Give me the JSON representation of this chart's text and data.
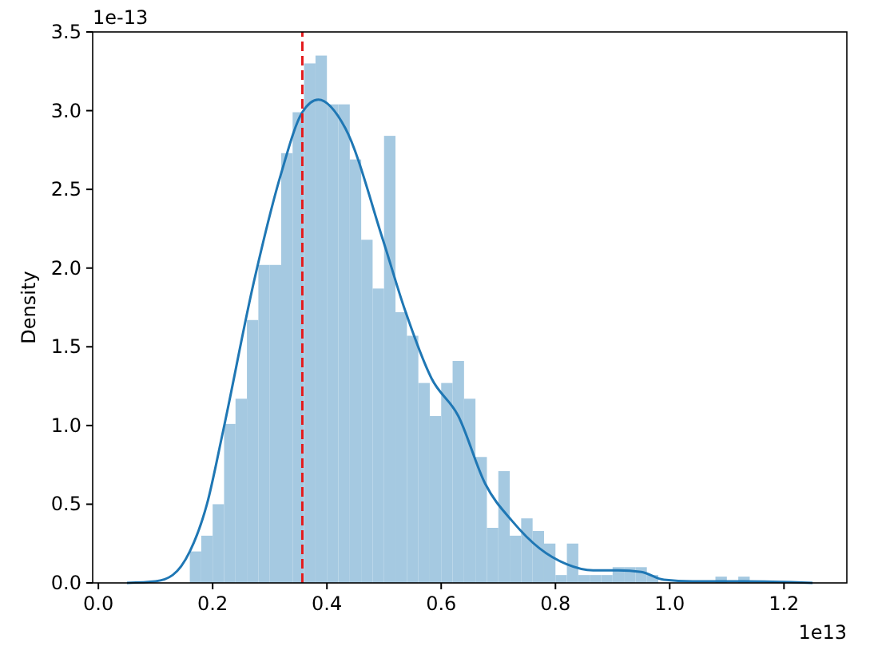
{
  "chart_data": {
    "type": "histogram",
    "ylabel": "Density",
    "xlim": [
      -0.01,
      1.31
    ],
    "ylim": [
      0,
      3.5
    ],
    "xticks": [
      {
        "value": 0,
        "label": "0.0"
      },
      0.2,
      0.4,
      0.6,
      0.8,
      {
        "value": 1,
        "label": "1.0"
      },
      1.2
    ],
    "yticks": [
      {
        "value": 0,
        "label": "0.0"
      },
      0.5,
      {
        "value": 1,
        "label": "1.0"
      },
      1.5,
      {
        "value": 2,
        "label": "2.0"
      },
      2.5,
      {
        "value": 3,
        "label": "3.0"
      },
      3.5
    ],
    "annotations": [
      "1e-13",
      "1e13"
    ],
    "ref_lines": [
      {
        "axis": "x",
        "value": 0.357,
        "color": "#e31a1c",
        "line_style": "dashed"
      }
    ],
    "color": "#a5c9e1",
    "bins": [
      0.16,
      0.18,
      0.2,
      0.22,
      0.24,
      0.26,
      0.28,
      0.3,
      0.32,
      0.34,
      0.36,
      0.38,
      0.4,
      0.42,
      0.44,
      0.46,
      0.48,
      0.5,
      0.52,
      0.54,
      0.56,
      0.58,
      0.6,
      0.62,
      0.64,
      0.66,
      0.68,
      0.7,
      0.72,
      0.74,
      0.76,
      0.78,
      0.8,
      0.82,
      0.84,
      0.86,
      0.88,
      0.9,
      0.92,
      0.94,
      0.96,
      0.98,
      1.0,
      1.02,
      1.04,
      1.06,
      1.08,
      1.1,
      1.12,
      1.14
    ],
    "values": [
      0.2,
      0.3,
      0.5,
      1.01,
      1.17,
      1.67,
      2.02,
      2.02,
      2.73,
      2.99,
      3.3,
      3.35,
      3.04,
      3.04,
      2.69,
      2.18,
      1.87,
      2.84,
      1.72,
      1.57,
      1.27,
      1.06,
      1.27,
      1.41,
      1.17,
      0.8,
      0.35,
      0.71,
      0.3,
      0.41,
      0.33,
      0.25,
      0.05,
      0.25,
      0.05,
      0.05,
      0.05,
      0.1,
      0.1,
      0.1,
      0.05,
      null,
      0,
      0,
      0,
      0,
      0.04,
      null,
      0.04
    ],
    "series": [
      {
        "type": "line",
        "color": "#1f77b4",
        "x": [
          0.05,
          0.1,
          0.13,
          0.16,
          0.19,
          0.218,
          0.272,
          0.319,
          0.357,
          0.385,
          0.432,
          0.498,
          0.536,
          0.583,
          0.63,
          0.677,
          0.725,
          0.772,
          0.819,
          0.866,
          0.91,
          0.95,
          0.99,
          1.04,
          1.13,
          1.25
        ],
        "values": [
          0,
          0.01,
          0.05,
          0.2,
          0.5,
          0.96,
          1.91,
          2.59,
          2.99,
          3.07,
          2.89,
          2.18,
          1.74,
          1.3,
          1.06,
          0.63,
          0.39,
          0.22,
          0.12,
          0.08,
          0.08,
          0.07,
          0.02,
          0.01,
          0.01,
          0
        ]
      }
    ]
  }
}
